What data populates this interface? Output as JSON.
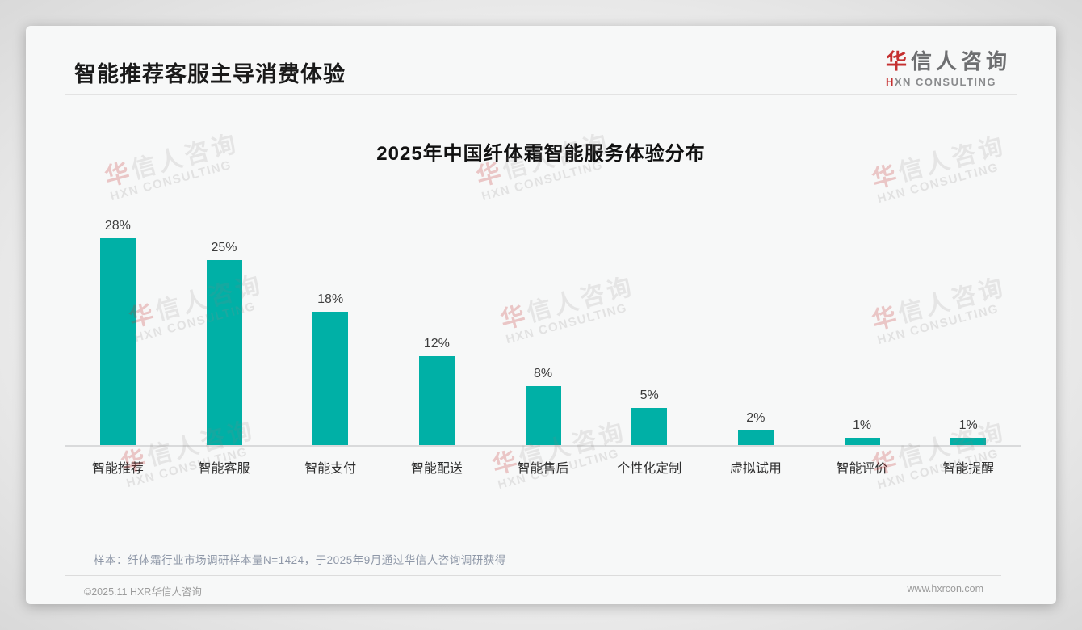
{
  "page": {
    "header": {
      "title": "智能推荐客服主导消费体验",
      "logo": {
        "cn_first": "华",
        "cn_rest": "信人咨询",
        "en_first": "H",
        "en_rest": "XN CONSULTING"
      }
    },
    "note": "样本：纤体霜行业市场调研样本量N=1424，于2025年9月通过华信人咨询调研获得",
    "footer": {
      "copyright": "©2025.11 HXR华信人咨询",
      "website": "www.hxrcon.com"
    },
    "watermark": {
      "line1_first": "华",
      "line1_rest": "信人咨询",
      "line2": "HXN CONSULTING"
    }
  },
  "chart_data": {
    "type": "bar",
    "title": "2025年中国纤体霜智能服务体验分布",
    "categories": [
      "智能推荐",
      "智能客服",
      "智能支付",
      "智能配送",
      "智能售后",
      "个性化定制",
      "虚拟试用",
      "智能评价",
      "智能提醒"
    ],
    "values": [
      28,
      25,
      18,
      12,
      8,
      5,
      2,
      1,
      1
    ],
    "labels": [
      "28%",
      "25%",
      "18%",
      "12%",
      "8%",
      "5%",
      "2%",
      "1%",
      "1%"
    ],
    "unit": "%",
    "xlabel": "",
    "ylabel": "",
    "ylim": [
      0,
      30
    ],
    "grid": false,
    "legend": false,
    "value_labels_position": "above",
    "bar_color": "#00b0a6"
  },
  "colors": {
    "accent_red": "#c53030",
    "bar_teal": "#00b0a6",
    "title_text": "#1a1a1a",
    "note_text": "#8f98a8",
    "footer_text": "#9b9b9b"
  }
}
